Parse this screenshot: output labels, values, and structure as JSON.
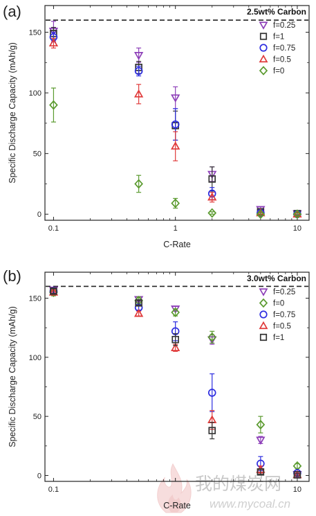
{
  "colors": {
    "f0.25": "#8d3fb8",
    "f1": "#333333",
    "f0.75": "#2c2ce0",
    "f0.5": "#e03a3a",
    "f0": "#5a9a2e"
  },
  "watermark": {
    "cn": "我的煤炭网",
    "url": "www.mycoal.cn"
  },
  "chart_data": [
    {
      "type": "scatter",
      "panel": "(a)",
      "note": "2.5wt% Carbon",
      "xlabel": "C-Rate",
      "ylabel": "Specific Discharge Capacity (mAh/g)",
      "x_scale": "log",
      "xlim": [
        0.085,
        12.5
      ],
      "ylim": [
        -5,
        172
      ],
      "x_ticks": [
        0.1,
        1,
        10
      ],
      "x_tick_labels": [
        "0.1",
        "1",
        "10"
      ],
      "y_ticks": [
        0,
        50,
        100,
        150
      ],
      "reference_line": 160,
      "legend_position": "top-right",
      "grid": false,
      "series": [
        {
          "name": "f=0.25",
          "marker": "triangle-down",
          "color_key": "f0.25",
          "points": [
            [
              0.1,
              151,
              8
            ],
            [
              0.5,
              131,
              6
            ],
            [
              1,
              96,
              9
            ],
            [
              2,
              33,
              6
            ],
            [
              5,
              4,
              2
            ],
            [
              10,
              0.5,
              1
            ]
          ]
        },
        {
          "name": "f=1",
          "marker": "square",
          "color_key": "f1",
          "points": [
            [
              0.1,
              149,
              5
            ],
            [
              0.5,
              121,
              5
            ],
            [
              1,
              73,
              12
            ],
            [
              2,
              29,
              10
            ],
            [
              5,
              2,
              2
            ],
            [
              10,
              0.5,
              1
            ]
          ]
        },
        {
          "name": "f=0.75",
          "marker": "circle",
          "color_key": "f0.75",
          "points": [
            [
              0.1,
              146,
              4
            ],
            [
              0.5,
              118,
              4
            ],
            [
              1,
              74,
              13
            ],
            [
              2,
              17,
              5
            ],
            [
              5,
              1,
              2
            ],
            [
              10,
              0,
              1
            ]
          ]
        },
        {
          "name": "f=0.5",
          "marker": "triangle-up",
          "color_key": "f0.5",
          "points": [
            [
              0.1,
              141,
              4
            ],
            [
              0.5,
              99,
              8
            ],
            [
              1,
              56,
              12
            ],
            [
              2,
              14,
              4
            ],
            [
              5,
              1,
              1
            ],
            [
              10,
              0,
              1
            ]
          ]
        },
        {
          "name": "f=0",
          "marker": "diamond",
          "color_key": "f0",
          "points": [
            [
              0.1,
              90,
              14
            ],
            [
              0.5,
              25,
              7
            ],
            [
              1,
              9,
              4
            ],
            [
              2,
              1,
              1
            ],
            [
              5,
              0,
              1
            ],
            [
              10,
              0,
              1
            ]
          ]
        }
      ]
    },
    {
      "type": "scatter",
      "panel": "(b)",
      "note": "3.0wt% Carbon",
      "xlabel": "C-Rate",
      "ylabel": "Specific Discharge Capacity (mAh/g)",
      "x_scale": "log",
      "xlim": [
        0.085,
        12.5
      ],
      "ylim": [
        -5,
        172
      ],
      "x_ticks": [
        0.1,
        10
      ],
      "x_tick_labels": [
        "0.1",
        "10"
      ],
      "y_ticks": [
        0,
        50,
        100,
        150
      ],
      "reference_line": 160,
      "legend_position": "top-right",
      "grid": false,
      "series": [
        {
          "name": "f=0.25",
          "marker": "triangle-down",
          "color_key": "f0.25",
          "points": [
            [
              0.1,
              157,
              2
            ],
            [
              0.5,
              149,
              2
            ],
            [
              1,
              141,
              2
            ],
            [
              2,
              115,
              4
            ],
            [
              5,
              30,
              3
            ],
            [
              10,
              1,
              1
            ]
          ]
        },
        {
          "name": "f=0",
          "marker": "diamond",
          "color_key": "f0",
          "points": [
            [
              0.1,
              155,
              3
            ],
            [
              0.5,
              148,
              3
            ],
            [
              1,
              138,
              3
            ],
            [
              2,
              117,
              5
            ],
            [
              5,
              43,
              7
            ],
            [
              10,
              8,
              2
            ]
          ]
        },
        {
          "name": "f=0.75",
          "marker": "circle",
          "color_key": "f0.75",
          "points": [
            [
              0.1,
              156,
              2
            ],
            [
              0.5,
              142,
              2
            ],
            [
              1,
              122,
              8
            ],
            [
              2,
              70,
              16
            ],
            [
              5,
              10,
              6
            ],
            [
              10,
              2,
              1
            ]
          ]
        },
        {
          "name": "f=0.5",
          "marker": "triangle-up",
          "color_key": "f0.5",
          "points": [
            [
              0.1,
              155,
              2
            ],
            [
              0.5,
              137,
              2
            ],
            [
              1,
              108,
              3
            ],
            [
              2,
              47,
              8
            ],
            [
              5,
              5,
              3
            ],
            [
              10,
              0.5,
              1
            ]
          ]
        },
        {
          "name": "f=1",
          "marker": "square",
          "color_key": "f1",
          "points": [
            [
              0.1,
              156,
              2
            ],
            [
              0.5,
              146,
              2
            ],
            [
              1,
              115,
              5
            ],
            [
              2,
              38,
              7
            ],
            [
              5,
              3,
              2
            ],
            [
              10,
              0.5,
              1
            ]
          ]
        }
      ]
    }
  ]
}
